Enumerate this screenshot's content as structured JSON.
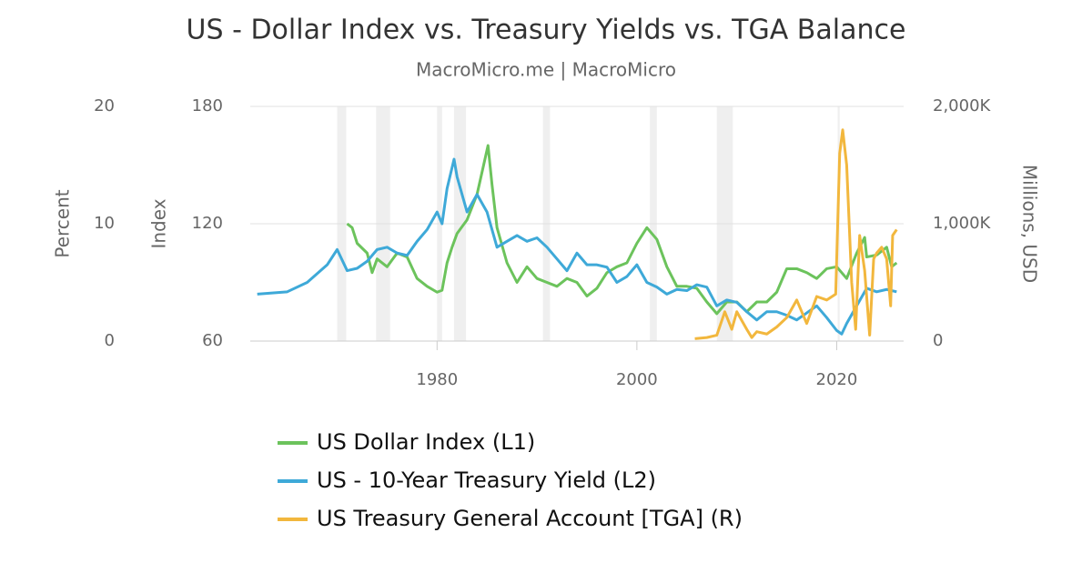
{
  "chart_data": {
    "type": "line",
    "title": "US - Dollar Index vs. Treasury Yields vs. TGA Balance",
    "subtitle": "MacroMicro.me | MacroMicro",
    "xlim": [
      1961.3,
      2026.7
    ],
    "xticks": [
      1980,
      2000,
      2020
    ],
    "ylabel": "Index",
    "ylim": [
      60,
      180
    ],
    "yticks": [
      60,
      120,
      180
    ],
    "y2label": "Percent",
    "y2lim": [
      0,
      20
    ],
    "y2ticks": [
      0,
      10,
      20
    ],
    "y3label": "Millions, USD",
    "y3lim": [
      0,
      2000000
    ],
    "y3ticks": [
      0,
      {
        "value": 1000000,
        "label": "1,000K"
      },
      {
        "value": 2000000,
        "label": "2,000K"
      }
    ],
    "grid": true,
    "legend": "bottom",
    "recessions": [
      [
        1970.0,
        1970.9
      ],
      [
        1973.9,
        1975.3
      ],
      [
        1980.0,
        1980.5
      ],
      [
        1981.7,
        1982.9
      ],
      [
        1990.6,
        1991.3
      ],
      [
        2001.3,
        2002.0
      ],
      [
        2008.0,
        2009.6
      ],
      [
        2020.1,
        2020.3
      ]
    ],
    "series": [
      {
        "name": "US Dollar Index (L1)",
        "color": "#6cc35c",
        "axis": "y",
        "x": [
          1971.0,
          1971.5,
          1972,
          1973,
          1973.5,
          1974,
          1975,
          1976,
          1977,
          1978,
          1979,
          1980,
          1980.5,
          1981,
          1981.5,
          1982,
          1983,
          1984,
          1985.1,
          1985.5,
          1986,
          1987,
          1988,
          1989,
          1990,
          1991,
          1992,
          1993,
          1994,
          1995,
          1996,
          1997,
          1998,
          1999,
          2000,
          2001,
          2002,
          2003,
          2004,
          2005,
          2006,
          2007,
          2008,
          2009,
          2010,
          2011,
          2012,
          2013,
          2014,
          2015,
          2016,
          2017,
          2018,
          2019,
          2020,
          2021,
          2022,
          2022.8,
          2023,
          2024,
          2025,
          2025.5,
          2026
        ],
        "values": [
          120,
          118,
          110,
          105,
          95,
          102,
          98,
          105,
          103,
          92,
          88,
          85,
          86,
          100,
          108,
          115,
          122,
          135,
          160,
          140,
          118,
          100,
          90,
          98,
          92,
          90,
          88,
          92,
          90,
          83,
          87,
          95,
          98,
          100,
          110,
          118,
          112,
          98,
          88,
          88,
          87,
          80,
          74,
          80,
          80,
          75,
          80,
          80,
          85,
          97,
          97,
          95,
          92,
          97,
          98,
          92,
          105,
          113,
          103,
          104,
          108,
          98,
          100
        ]
      },
      {
        "name": "US - 10-Year Treasury Yield (L2)",
        "color": "#3ea9d8",
        "axis": "y2",
        "x": [
          1962,
          1965,
          1967,
          1969,
          1970,
          1971,
          1972,
          1973,
          1974,
          1975,
          1976,
          1977,
          1978,
          1979,
          1980,
          1980.5,
          1981,
          1981.7,
          1982,
          1983,
          1984,
          1985,
          1986,
          1987,
          1988,
          1989,
          1990,
          1991,
          1992,
          1993,
          1994,
          1995,
          1996,
          1997,
          1998,
          1999,
          2000,
          2001,
          2002,
          2003,
          2004,
          2005,
          2006,
          2007,
          2008,
          2009,
          2010,
          2011,
          2012,
          2013,
          2014,
          2015,
          2016,
          2017,
          2018,
          2019,
          2020,
          2020.5,
          2021,
          2022,
          2023,
          2024,
          2025,
          2026
        ],
        "values": [
          4.0,
          4.2,
          5.0,
          6.5,
          7.8,
          6.0,
          6.2,
          6.8,
          7.8,
          8.0,
          7.5,
          7.3,
          8.5,
          9.5,
          11.0,
          10,
          13,
          15.5,
          14,
          11,
          12.5,
          11,
          8,
          8.5,
          9,
          8.5,
          8.8,
          8,
          7,
          6,
          7.5,
          6.5,
          6.5,
          6.3,
          5.0,
          5.5,
          6.5,
          5,
          4.6,
          4.0,
          4.4,
          4.3,
          4.8,
          4.6,
          3.0,
          3.5,
          3.3,
          2.5,
          1.8,
          2.5,
          2.5,
          2.2,
          1.8,
          2.4,
          3.0,
          2.0,
          0.9,
          0.6,
          1.5,
          3.0,
          4.5,
          4.2,
          4.4,
          4.2
        ]
      },
      {
        "name": "US Treasury General Account [TGA] (R)",
        "color": "#f2b73d",
        "axis": "y3",
        "x": [
          2005.8,
          2007,
          2008,
          2008.8,
          2009.5,
          2010,
          2011,
          2011.5,
          2012,
          2013,
          2014,
          2015,
          2016,
          2017,
          2018,
          2019,
          2019.9,
          2020.3,
          2020.6,
          2021,
          2021.5,
          2021.9,
          2022.3,
          2022.8,
          2023.3,
          2023.7,
          2024,
          2024.5,
          2025,
          2025.4,
          2025.6,
          2026
        ],
        "values": [
          20000,
          30000,
          50000,
          250000,
          100000,
          250000,
          100000,
          30000,
          80000,
          60000,
          120000,
          200000,
          350000,
          150000,
          380000,
          350000,
          400000,
          1600000,
          1800000,
          1500000,
          500000,
          100000,
          900000,
          600000,
          50000,
          700000,
          750000,
          800000,
          700000,
          300000,
          900000,
          950000
        ]
      }
    ]
  }
}
